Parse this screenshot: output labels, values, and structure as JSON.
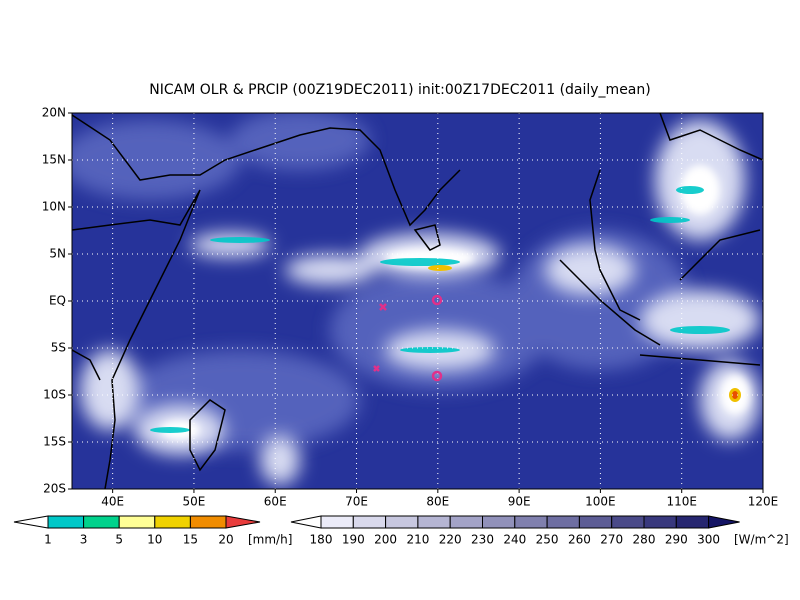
{
  "title": "NICAM OLR & PRCIP (00Z19DEC2011) init:00Z17DEC2011 (daily_mean)",
  "map": {
    "lat_labels": [
      "20N",
      "15N",
      "10N",
      "5N",
      "EQ",
      "5S",
      "10S",
      "15S",
      "20S"
    ],
    "lon_labels": [
      "40E",
      "50E",
      "60E",
      "70E",
      "80E",
      "90E",
      "100E",
      "110E",
      "120E"
    ]
  },
  "precip_legend": {
    "labels": [
      "1",
      "3",
      "5",
      "10",
      "15",
      "20"
    ],
    "unit": "[mm/h]"
  },
  "olr_legend": {
    "labels": [
      "180",
      "190",
      "200",
      "210",
      "220",
      "230",
      "240",
      "250",
      "260",
      "270",
      "280",
      "290",
      "300"
    ],
    "unit": "[W/m^2]"
  }
}
